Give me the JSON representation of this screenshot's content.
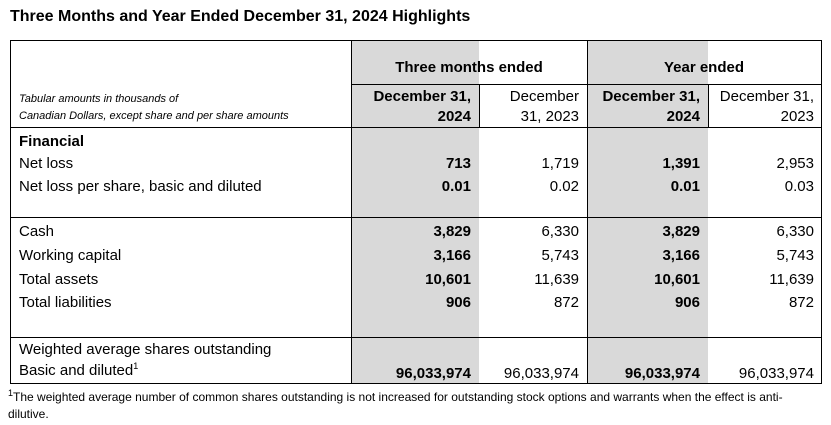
{
  "title": "Three Months and Year Ended December 31, 2024 Highlights",
  "header": {
    "group_three_months": "Three months ended",
    "group_year": "Year ended",
    "note_line1": "Tabular amounts in thousands of",
    "note_line2": "Canadian Dollars, except share and per share amounts",
    "cols": [
      {
        "line1": "December 31,",
        "line2": "2024"
      },
      {
        "line1": "December",
        "line2": "31, 2023"
      },
      {
        "line1": "December 31,",
        "line2": "2024"
      },
      {
        "line1": "December 31,",
        "line2": "2023"
      }
    ]
  },
  "section_financial": "Financial",
  "rows": [
    {
      "label": "Net loss",
      "values": [
        "713",
        "1,719",
        "1,391",
        "2,953"
      ]
    },
    {
      "label": "Net loss per share, basic and diluted",
      "values": [
        "0.01",
        "0.02",
        "0.01",
        "0.03"
      ]
    },
    {
      "label": "Cash",
      "values": [
        "3,829",
        "6,330",
        "3,829",
        "6,330"
      ]
    },
    {
      "label": "Working capital",
      "values": [
        "3,166",
        "5,743",
        "3,166",
        "5,743"
      ]
    },
    {
      "label": "Total assets",
      "values": [
        "10,601",
        "11,639",
        "10,601",
        "11,639"
      ]
    },
    {
      "label": "Total liabilities",
      "values": [
        "906",
        "872",
        "906",
        "872"
      ]
    }
  ],
  "shares": {
    "label_line1": "Weighted average shares outstanding",
    "label_line2": "Basic and diluted",
    "superscript": "1",
    "values": [
      "96,033,974",
      "96,033,974",
      "96,033,974",
      "96,033,974"
    ]
  },
  "footnote": {
    "marker": "1",
    "text": "The weighted average number of common shares outstanding is not increased for outstanding stock options and warrants when the effect is anti-dilutive."
  },
  "colors": {
    "shade": "#d9d9d9"
  }
}
